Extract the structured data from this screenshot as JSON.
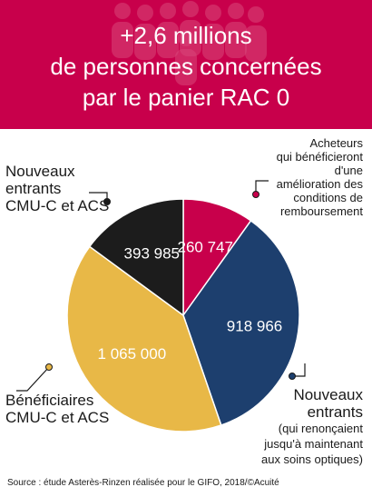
{
  "header": {
    "title_line1": "+2,6 millions",
    "title_line2": "de personnes concernées",
    "title_line3": "par le panier RAC 0",
    "background": "#c8004b"
  },
  "chart_data": {
    "type": "pie",
    "title": "+2,6 millions de personnes concernées par le panier RAC 0",
    "slices": [
      {
        "label": "Acheteurs qui bénéficieront d'une amélioration des conditions de remboursement",
        "value": 260747,
        "value_text": "260 747",
        "color": "#c8004b"
      },
      {
        "label": "Nouveaux entrants (qui renonçaient jusqu'à maintenant aux soins optiques)",
        "value": 918966,
        "value_text": "918 966",
        "color": "#1d3f6e"
      },
      {
        "label": "Bénéficiaires CMU-C et ACS",
        "value": 1065000,
        "value_text": "1 065 000",
        "color": "#e8b847"
      },
      {
        "label": "Nouveaux entrants CMU-C et ACS",
        "value": 393985,
        "value_text": "393 985",
        "color": "#1c1c1c"
      }
    ]
  },
  "labels": {
    "acheteurs": [
      "Acheteurs",
      "qui bénéficieront",
      "d'une",
      "amélioration des",
      "conditions de",
      "remboursement"
    ],
    "nouveaux_entrants": [
      "Nouveaux",
      "entrants"
    ],
    "nouveaux_entrants_sub": [
      "(qui renonçaient",
      "jusqu'à maintenant",
      "aux soins optiques)"
    ],
    "beneficiaires": [
      "Bénéficiaires",
      "CMU-C et ACS"
    ],
    "nouveaux_cmu": [
      "Nouveaux",
      "entrants",
      "CMU-C et ACS"
    ]
  },
  "source": "Source : étude Asterès-Rinzen réalisée pour le GIFO, 2018/©Acuité"
}
